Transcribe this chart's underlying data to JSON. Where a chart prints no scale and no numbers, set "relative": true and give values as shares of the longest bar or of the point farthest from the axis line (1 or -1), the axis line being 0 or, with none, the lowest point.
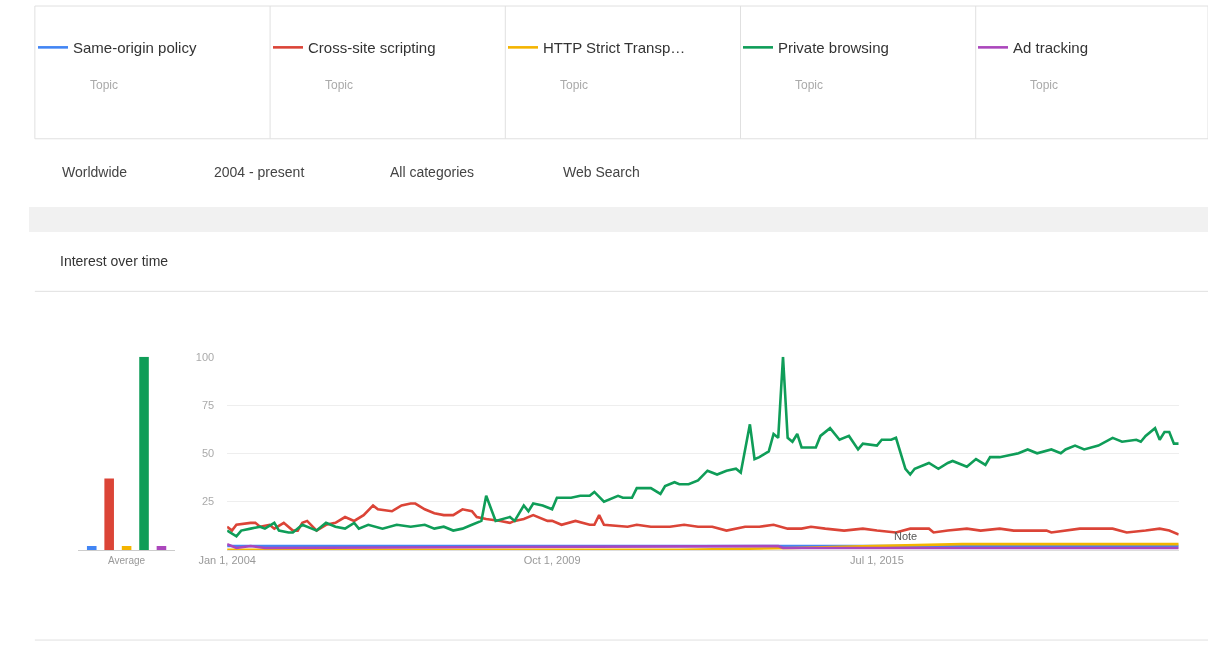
{
  "chart_data": [
    {
      "type": "bar",
      "relative": true,
      "xlabel": "Average",
      "categories": [
        null,
        null,
        null,
        null,
        null
      ],
      "values": [
        0.02,
        0.37,
        0.02,
        1,
        0.02
      ],
      "colors": [
        "#4285f4",
        "#db4437",
        "#f4b400",
        "#0f9d58",
        "#ab47bc"
      ]
    },
    {
      "type": "line",
      "legend": "top",
      "grid": "y",
      "ylim": [
        0,
        100
      ],
      "yticks": [
        25,
        50,
        75,
        100
      ],
      "xlim": [
        "2004-01-01",
        "2020-11-01"
      ],
      "xticks": [
        {
          "value": "2004-01-01",
          "label": "Jan 1, 2004"
        },
        {
          "value": "2009-10-01",
          "label": "Oct 1, 2009"
        },
        {
          "value": "2015-07-01",
          "label": "Jul 1, 2015"
        }
      ],
      "annotations": [
        "Topic",
        "Topic",
        "Topic",
        "Topic",
        "Topic",
        "Worldwide",
        "2004 - present",
        "All categories",
        "Web Search",
        "Interest over time",
        {
          "text": "Note",
          "x": "2016-01",
          "y": 3
        }
      ],
      "series": [
        {
          "name": "Same-origin policy",
          "color": "#4285f4",
          "x": [
            "2004-01",
            "2008-01",
            "2012-01",
            "2016-01",
            "2020-11"
          ],
          "values": [
            2,
            2,
            2,
            2,
            2
          ]
        },
        {
          "name": "Cross-site scripting",
          "color": "#db4437",
          "x": [
            "2004-01",
            "2004-02",
            "2004-03",
            "2004-06",
            "2004-07",
            "2004-08",
            "2004-10",
            "2004-11",
            "2005-01",
            "2005-03",
            "2005-04",
            "2005-05",
            "2005-06",
            "2005-08",
            "2005-10",
            "2005-12",
            "2006-02",
            "2006-04",
            "2006-06",
            "2006-08",
            "2006-09",
            "2006-12",
            "2007-02",
            "2007-04",
            "2007-05",
            "2007-07",
            "2007-09",
            "2007-11",
            "2008-01",
            "2008-03",
            "2008-05",
            "2008-06",
            "2008-08",
            "2008-11",
            "2009-01",
            "2009-02",
            "2009-04",
            "2009-06",
            "2009-09",
            "2009-10",
            "2009-12",
            "2010-03",
            "2010-06",
            "2010-07",
            "2010-08",
            "2010-09",
            "2011-02",
            "2011-04",
            "2011-07",
            "2011-09",
            "2011-11",
            "2012-02",
            "2012-05",
            "2012-08",
            "2012-11",
            "2013-03",
            "2013-06",
            "2013-09",
            "2013-12",
            "2014-03",
            "2014-05",
            "2014-08",
            "2014-12",
            "2015-04",
            "2015-07",
            "2015-11",
            "2016-02",
            "2016-06",
            "2016-07",
            "2016-10",
            "2017-02",
            "2017-05",
            "2017-09",
            "2017-12",
            "2018-07",
            "2018-08",
            "2019-02",
            "2019-06",
            "2019-09",
            "2019-12",
            "2020-04",
            "2020-07",
            "2020-09",
            "2020-11"
          ],
          "values": [
            12,
            10,
            13,
            14,
            14,
            12,
            13,
            11,
            14,
            10,
            10,
            14,
            15,
            10,
            13,
            14,
            17,
            15,
            18,
            23,
            21,
            20,
            23,
            24,
            24,
            21,
            19,
            18,
            18,
            21,
            20,
            17,
            16,
            15,
            14,
            15,
            16,
            18,
            15,
            15,
            13,
            15,
            13,
            13,
            18,
            13,
            12,
            13,
            12,
            12,
            12,
            13,
            12,
            12,
            10,
            12,
            12,
            13,
            11,
            11,
            12,
            11,
            10,
            11,
            10,
            9,
            11,
            11,
            9,
            10,
            11,
            10,
            11,
            10,
            10,
            9,
            11,
            11,
            11,
            9,
            10,
            11,
            10,
            8
          ]
        },
        {
          "name": "HTTP Strict Transp…",
          "color": "#f4b400",
          "x": [
            "2004-01",
            "2012-01",
            "2014-01",
            "2015-06",
            "2017-01",
            "2020-11"
          ],
          "values": [
            0,
            0,
            1,
            2,
            3,
            3
          ]
        },
        {
          "name": "Private browsing",
          "color": "#0f9d58",
          "x": [
            "2004-01",
            "2004-03",
            "2004-04",
            "2004-06",
            "2004-08",
            "2004-09",
            "2004-11",
            "2004-12",
            "2005-02",
            "2005-03",
            "2005-05",
            "2005-07",
            "2005-08",
            "2005-10",
            "2005-12",
            "2006-02",
            "2006-04",
            "2006-05",
            "2006-07",
            "2006-10",
            "2007-01",
            "2007-04",
            "2007-07",
            "2007-09",
            "2007-11",
            "2008-01",
            "2008-03",
            "2008-05",
            "2008-07",
            "2008-08",
            "2008-10",
            "2009-01",
            "2009-02",
            "2009-04",
            "2009-05",
            "2009-06",
            "2009-08",
            "2009-10",
            "2009-11",
            "2009-12",
            "2010-02",
            "2010-04",
            "2010-06",
            "2010-07",
            "2010-09",
            "2010-12",
            "2011-01",
            "2011-03",
            "2011-04",
            "2011-07",
            "2011-09",
            "2011-10",
            "2011-12",
            "2012-01",
            "2012-03",
            "2012-05",
            "2012-07",
            "2012-09",
            "2012-11",
            "2013-01",
            "2013-02",
            "2013-04",
            "2013-05",
            "2013-06",
            "2013-08",
            "2013-09",
            "2013-10",
            "2013-11",
            "2013-12",
            "2014-01",
            "2014-02",
            "2014-03",
            "2014-05",
            "2014-06",
            "2014-07",
            "2014-09",
            "2014-11",
            "2015-01",
            "2015-03",
            "2015-04",
            "2015-07",
            "2015-08",
            "2015-10",
            "2015-11",
            "2016-01",
            "2016-02",
            "2016-03",
            "2016-06",
            "2016-08",
            "2016-10",
            "2016-11",
            "2017-02",
            "2017-04",
            "2017-06",
            "2017-07",
            "2017-09",
            "2017-11",
            "2018-01",
            "2018-03",
            "2018-05",
            "2018-08",
            "2018-10",
            "2018-11",
            "2019-01",
            "2019-03",
            "2019-06",
            "2019-09",
            "2019-11",
            "2020-02",
            "2020-03",
            "2020-04",
            "2020-06",
            "2020-07",
            "2020-08",
            "2020-09",
            "2020-10",
            "2020-11"
          ],
          "values": [
            10,
            7,
            10,
            11,
            12,
            11,
            14,
            10,
            9,
            9,
            13,
            11,
            10,
            14,
            12,
            11,
            14,
            11,
            13,
            11,
            13,
            12,
            13,
            11,
            12,
            10,
            11,
            13,
            15,
            28,
            15,
            17,
            15,
            23,
            20,
            24,
            23,
            21,
            27,
            27,
            27,
            28,
            28,
            30,
            25,
            28,
            27,
            27,
            32,
            32,
            29,
            33,
            35,
            34,
            34,
            36,
            41,
            39,
            41,
            42,
            40,
            65,
            47,
            48,
            51,
            60,
            58,
            100,
            58,
            56,
            60,
            53,
            53,
            53,
            59,
            63,
            57,
            59,
            52,
            55,
            54,
            57,
            57,
            58,
            42,
            39,
            42,
            45,
            42,
            45,
            46,
            43,
            47,
            44,
            48,
            48,
            49,
            50,
            52,
            50,
            52,
            50,
            52,
            54,
            52,
            54,
            58,
            56,
            57,
            56,
            59,
            63,
            57,
            61,
            61,
            55,
            55
          ]
        },
        {
          "name": "Ad tracking",
          "color": "#ab47bc",
          "x": [
            "2004-01",
            "2004-03",
            "2004-06",
            "2004-09",
            "2013-10",
            "2013-11",
            "2020-11"
          ],
          "values": [
            3,
            1,
            2,
            1,
            2,
            1,
            1
          ]
        }
      ]
    }
  ]
}
